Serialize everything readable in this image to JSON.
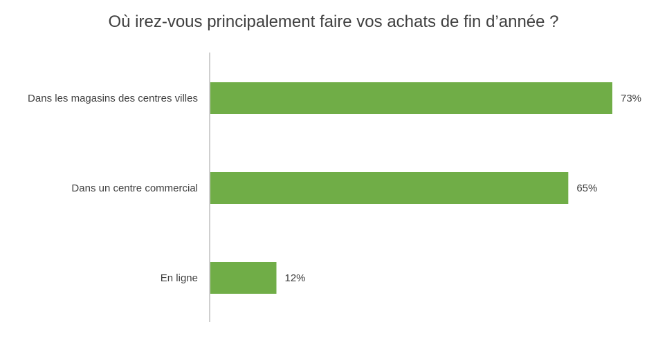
{
  "chart_data": {
    "type": "bar",
    "orientation": "horizontal",
    "title": "Où irez-vous principalement faire vos achats de fin d’année ?",
    "categories": [
      "Dans les magasins des centres villes",
      "Dans un centre commercial",
      "En ligne"
    ],
    "values": [
      73,
      65,
      12
    ],
    "value_labels": [
      "73%",
      "65%",
      "12%"
    ],
    "xlabel": "",
    "ylabel": "",
    "xlim": [
      0,
      73
    ],
    "grid": false,
    "legend": "none",
    "bar_color": "#70AD47",
    "axis_color": "#BFBFBF"
  }
}
